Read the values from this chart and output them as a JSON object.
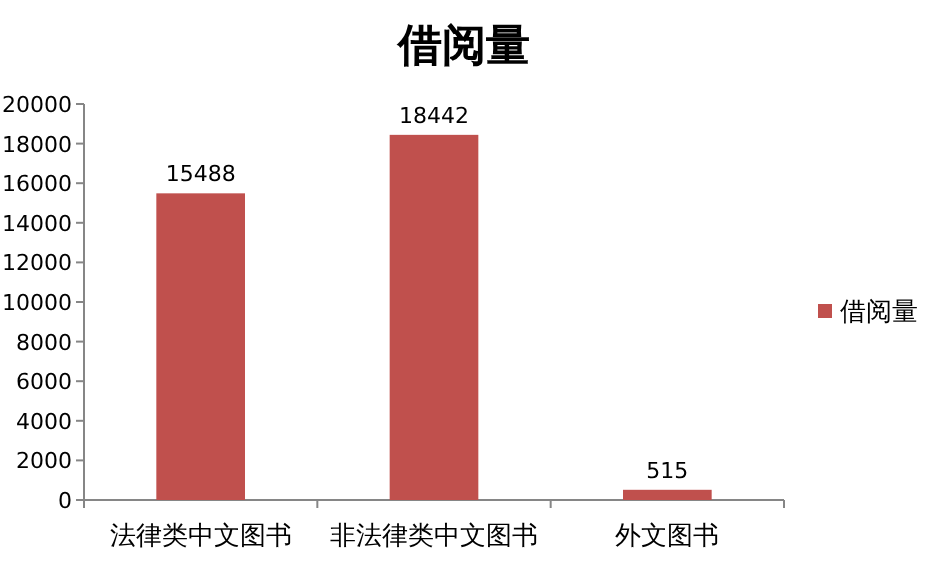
{
  "chart_data": {
    "type": "bar",
    "title": "借阅量",
    "categories": [
      "法律类中文图书",
      "非法律类中文图书",
      "外文图书"
    ],
    "series": [
      {
        "name": "借阅量",
        "color": "#c0504d",
        "values": [
          15488,
          18442,
          515
        ]
      }
    ],
    "ylim": [
      0,
      20000
    ],
    "yticks": [
      0,
      2000,
      4000,
      6000,
      8000,
      10000,
      12000,
      14000,
      16000,
      18000,
      20000
    ],
    "grid": false,
    "legend": "right",
    "data_labels": true
  }
}
